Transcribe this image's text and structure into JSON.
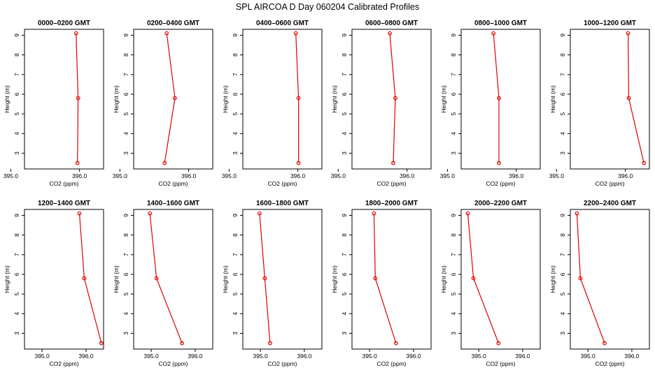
{
  "title": "SPL AIRCOA D  Day 060204  Calibrated Profiles",
  "colors": {
    "series": "#e00000",
    "axes": "#000000"
  },
  "chart_data": [
    {
      "type": "line",
      "title": "0000–0200 GMT",
      "xlabel": "CO2 (ppm)",
      "ylabel": "Height (m)",
      "xlim": [
        395.2,
        396.35
      ],
      "ylim": [
        2.2,
        9.3
      ],
      "xticks": [
        "395.0",
        "396.0"
      ],
      "yticks": [
        "3",
        "4",
        "5",
        "6",
        "7",
        "8",
        "9"
      ],
      "grid": false,
      "series": [
        {
          "x": [
            395.95,
            395.98,
            395.97
          ],
          "y": [
            9.1,
            5.8,
            2.5
          ]
        }
      ]
    },
    {
      "type": "line",
      "title": "0200–0400 GMT",
      "xlabel": "CO2 (ppm)",
      "ylabel": "Height (m)",
      "xlim": [
        395.2,
        396.35
      ],
      "ylim": [
        2.2,
        9.3
      ],
      "xticks": [
        "395.0",
        "396.0"
      ],
      "yticks": [
        "3",
        "4",
        "5",
        "6",
        "7",
        "8",
        "9"
      ],
      "grid": false,
      "series": [
        {
          "x": [
            395.68,
            395.8,
            395.65
          ],
          "y": [
            9.1,
            5.8,
            2.5
          ]
        }
      ]
    },
    {
      "type": "line",
      "title": "0400–0600 GMT",
      "xlabel": "CO2 (ppm)",
      "ylabel": "Height (m)",
      "xlim": [
        395.2,
        396.35
      ],
      "ylim": [
        2.2,
        9.3
      ],
      "xticks": [
        "395.0",
        "396.0"
      ],
      "yticks": [
        "3",
        "4",
        "5",
        "6",
        "7",
        "8",
        "9"
      ],
      "grid": false,
      "series": [
        {
          "x": [
            395.97,
            396.01,
            396.01
          ],
          "y": [
            9.1,
            5.8,
            2.5
          ]
        }
      ]
    },
    {
      "type": "line",
      "title": "0600–0800 GMT",
      "xlabel": "CO2 (ppm)",
      "ylabel": "Height (m)",
      "xlim": [
        395.2,
        396.35
      ],
      "ylim": [
        2.2,
        9.3
      ],
      "xticks": [
        "395.0",
        "396.0"
      ],
      "yticks": [
        "3",
        "4",
        "5",
        "6",
        "7",
        "8",
        "9"
      ],
      "grid": false,
      "series": [
        {
          "x": [
            395.75,
            395.83,
            395.8
          ],
          "y": [
            9.1,
            5.8,
            2.5
          ]
        }
      ]
    },
    {
      "type": "line",
      "title": "0800–1000 GMT",
      "xlabel": "CO2 (ppm)",
      "ylabel": "Height (m)",
      "xlim": [
        395.2,
        396.35
      ],
      "ylim": [
        2.2,
        9.3
      ],
      "xticks": [
        "395.0",
        "396.0"
      ],
      "yticks": [
        "3",
        "4",
        "5",
        "6",
        "7",
        "8",
        "9"
      ],
      "grid": false,
      "series": [
        {
          "x": [
            395.67,
            395.75,
            395.75
          ],
          "y": [
            9.1,
            5.8,
            2.5
          ]
        }
      ]
    },
    {
      "type": "line",
      "title": "1000–1200 GMT",
      "xlabel": "CO2 (ppm)",
      "ylabel": "Height (m)",
      "xlim": [
        395.2,
        396.35
      ],
      "ylim": [
        2.2,
        9.3
      ],
      "xticks": [
        "395.0",
        "396.0"
      ],
      "yticks": [
        "3",
        "4",
        "5",
        "6",
        "7",
        "8",
        "9"
      ],
      "grid": false,
      "series": [
        {
          "x": [
            396.04,
            396.05,
            396.27
          ],
          "y": [
            9.1,
            5.8,
            2.5
          ]
        }
      ]
    },
    {
      "type": "line",
      "title": "1200–1400 GMT",
      "xlabel": "CO2 (ppm)",
      "ylabel": "Height (m)",
      "xlim": [
        394.6,
        396.4
      ],
      "ylim": [
        2.2,
        9.3
      ],
      "xticks": [
        "395.0",
        "396.0"
      ],
      "yticks": [
        "3",
        "4",
        "5",
        "6",
        "7",
        "8",
        "9"
      ],
      "grid": false,
      "series": [
        {
          "x": [
            395.85,
            395.96,
            396.35
          ],
          "y": [
            9.1,
            5.8,
            2.5
          ]
        }
      ]
    },
    {
      "type": "line",
      "title": "1400–1600 GMT",
      "xlabel": "CO2 (ppm)",
      "ylabel": "Height (m)",
      "xlim": [
        394.6,
        396.4
      ],
      "ylim": [
        2.2,
        9.3
      ],
      "xticks": [
        "395.0",
        "396.0"
      ],
      "yticks": [
        "3",
        "4",
        "5",
        "6",
        "7",
        "8",
        "9"
      ],
      "grid": false,
      "series": [
        {
          "x": [
            394.97,
            395.12,
            395.7
          ],
          "y": [
            9.1,
            5.8,
            2.5
          ]
        }
      ]
    },
    {
      "type": "line",
      "title": "1600–1800 GMT",
      "xlabel": "CO2 (ppm)",
      "ylabel": "Height (m)",
      "xlim": [
        394.6,
        396.4
      ],
      "ylim": [
        2.2,
        9.3
      ],
      "xticks": [
        "395.0",
        "396.0"
      ],
      "yticks": [
        "3",
        "4",
        "5",
        "6",
        "7",
        "8",
        "9"
      ],
      "grid": false,
      "series": [
        {
          "x": [
            394.98,
            395.1,
            395.22
          ],
          "y": [
            9.1,
            5.8,
            2.5
          ]
        }
      ]
    },
    {
      "type": "line",
      "title": "1800–2000 GMT",
      "xlabel": "CO2 (ppm)",
      "ylabel": "Height (m)",
      "xlim": [
        394.6,
        396.4
      ],
      "ylim": [
        2.2,
        9.3
      ],
      "xticks": [
        "395.0",
        "396.0"
      ],
      "yticks": [
        "3",
        "4",
        "5",
        "6",
        "7",
        "8",
        "9"
      ],
      "grid": false,
      "series": [
        {
          "x": [
            395.1,
            395.13,
            395.6
          ],
          "y": [
            9.1,
            5.8,
            2.5
          ]
        }
      ]
    },
    {
      "type": "line",
      "title": "2000–2200 GMT",
      "xlabel": "CO2 (ppm)",
      "ylabel": "Height (m)",
      "xlim": [
        394.6,
        396.4
      ],
      "ylim": [
        2.2,
        9.3
      ],
      "xticks": [
        "395.0",
        "396.0"
      ],
      "yticks": [
        "3",
        "4",
        "5",
        "6",
        "7",
        "8",
        "9"
      ],
      "grid": false,
      "series": [
        {
          "x": [
            394.75,
            394.88,
            395.45
          ],
          "y": [
            9.1,
            5.8,
            2.5
          ]
        }
      ]
    },
    {
      "type": "line",
      "title": "2200–2400 GMT",
      "xlabel": "CO2 (ppm)",
      "ylabel": "Height (m)",
      "xlim": [
        394.6,
        396.4
      ],
      "ylim": [
        2.2,
        9.3
      ],
      "xticks": [
        "395.0",
        "396.0"
      ],
      "yticks": [
        "3",
        "4",
        "5",
        "6",
        "7",
        "8",
        "9"
      ],
      "grid": false,
      "series": [
        {
          "x": [
            394.75,
            394.83,
            395.38
          ],
          "y": [
            9.1,
            5.8,
            2.5
          ]
        }
      ]
    }
  ]
}
